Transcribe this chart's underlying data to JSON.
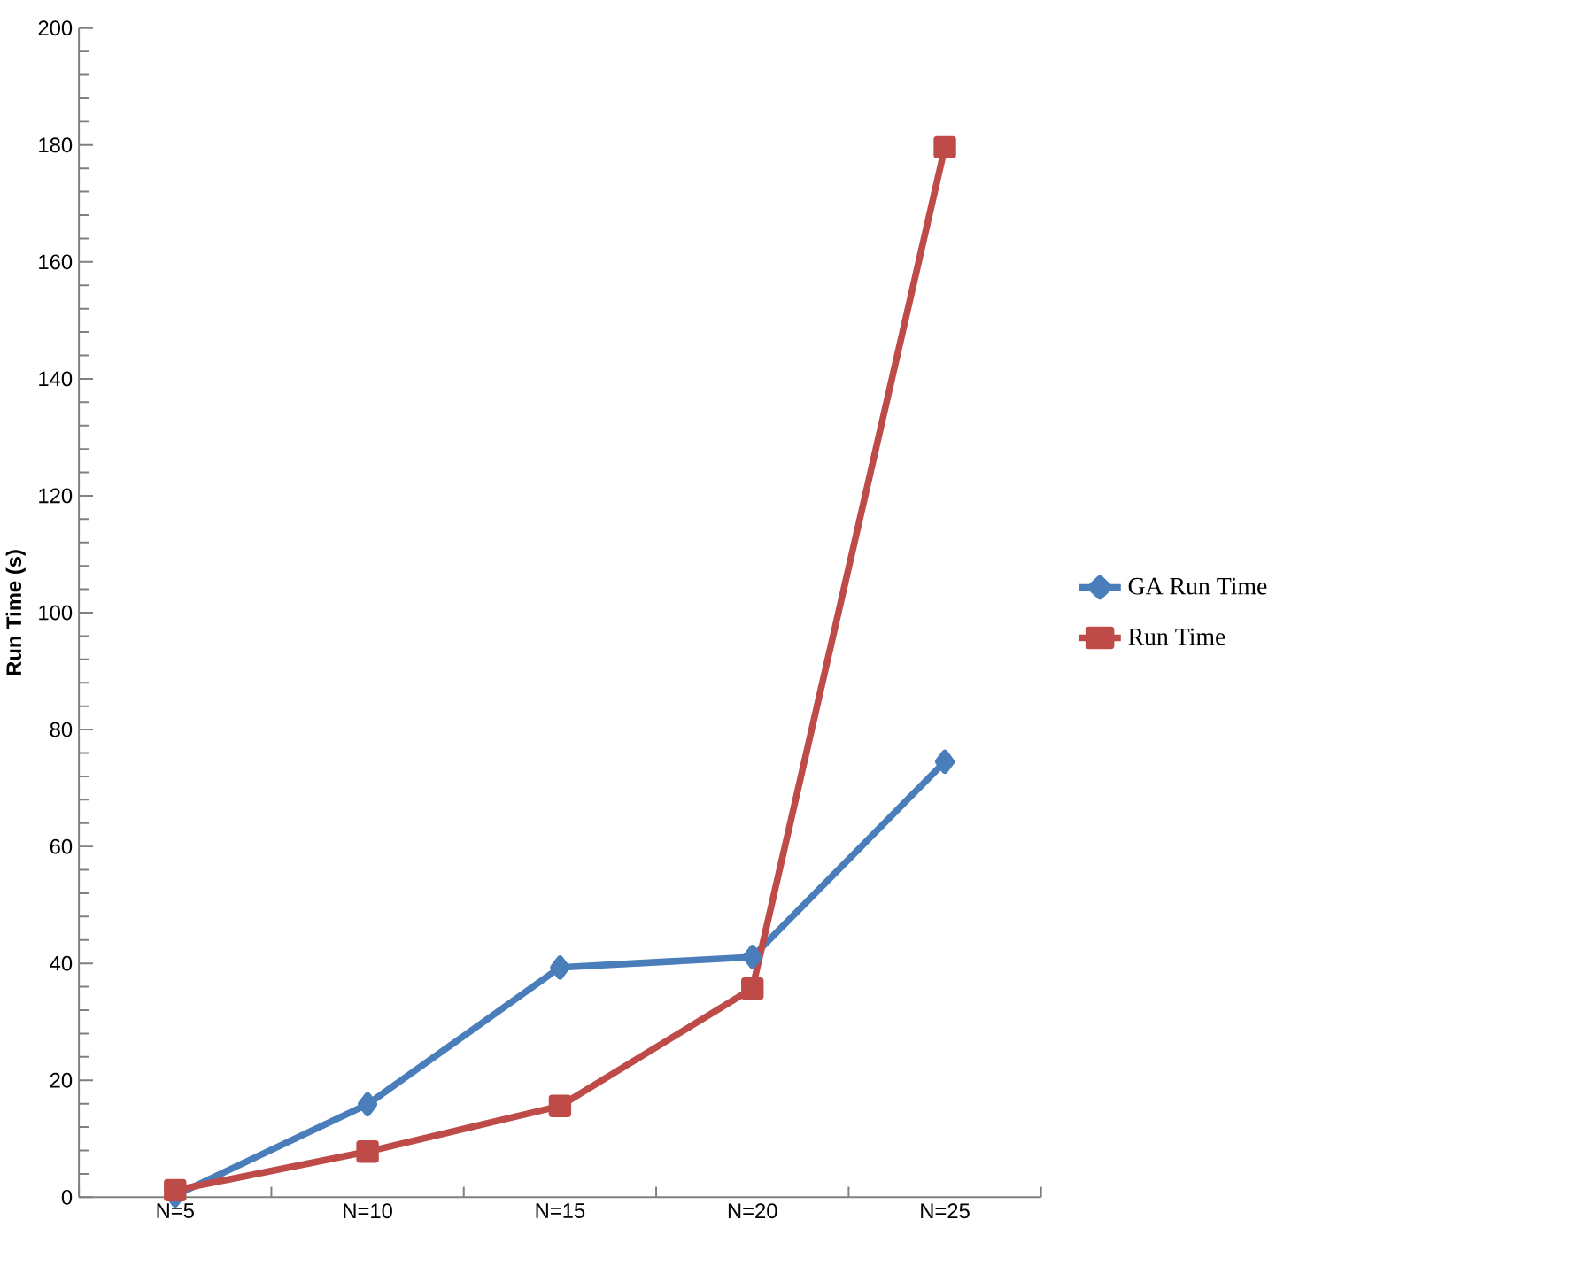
{
  "chart_data": {
    "type": "line",
    "ylabel": "Run Time (s)",
    "categories": [
      "N=5",
      "N=10",
      "N=15",
      "N=20",
      "N=25"
    ],
    "series": [
      {
        "name": "GA Run Time",
        "color": "#4a7ebb",
        "marker": "diamond",
        "values": [
          0.3,
          15.9,
          39.3,
          41.1,
          74.5
        ]
      },
      {
        "name": "Run Time",
        "color": "#be4b48",
        "marker": "square",
        "values": [
          1.2,
          7.8,
          15.6,
          35.7,
          179.6
        ]
      }
    ],
    "ylim": [
      0,
      200
    ],
    "yticks": [
      0,
      20,
      40,
      60,
      80,
      100,
      120,
      140,
      160,
      180,
      200
    ],
    "grid": false,
    "legend": "right",
    "line_style": "solid"
  }
}
